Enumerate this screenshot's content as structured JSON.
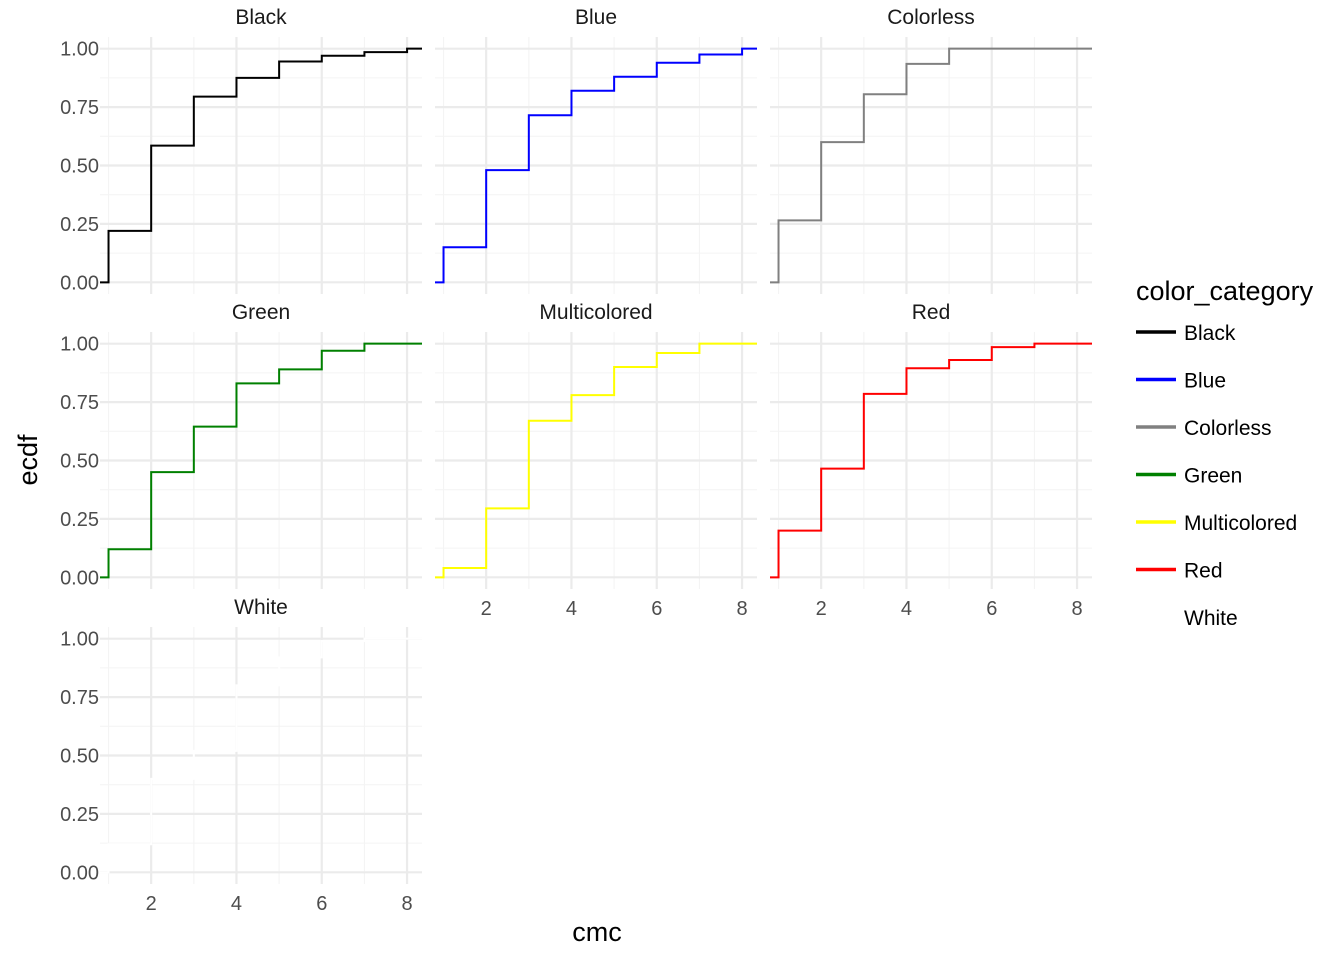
{
  "chart_data": {
    "type": "line",
    "geom": "step-ecdf",
    "xlabel": "cmc",
    "ylabel": "ecdf",
    "xlim": [
      0.8,
      8.35
    ],
    "ylim": [
      -0.05,
      1.05
    ],
    "x_ticks": [
      2,
      4,
      6,
      8
    ],
    "y_ticks": [
      0,
      0.25,
      0.5,
      0.75,
      1
    ],
    "y_tick_labels": [
      "0.00",
      "0.25",
      "0.50",
      "0.75",
      "1.00"
    ],
    "grid": true,
    "facet_columns": 3,
    "legend": {
      "title": "color_category",
      "position": "right",
      "entries": [
        {
          "label": "Black",
          "color": "#000000"
        },
        {
          "label": "Blue",
          "color": "#0000ff"
        },
        {
          "label": "Colorless",
          "color": "#808080"
        },
        {
          "label": "Green",
          "color": "#008000"
        },
        {
          "label": "Multicolored",
          "color": "#ffff00"
        },
        {
          "label": "Red",
          "color": "#ff0000"
        },
        {
          "label": "White",
          "color": "#ffffff"
        }
      ]
    },
    "series": [
      {
        "name": "Black",
        "color": "#000000",
        "x": [
          1,
          2,
          3,
          4,
          5,
          6,
          7,
          8
        ],
        "y": [
          0.22,
          0.585,
          0.795,
          0.875,
          0.945,
          0.97,
          0.985,
          1.0
        ]
      },
      {
        "name": "Blue",
        "color": "#0000ff",
        "x": [
          1,
          2,
          3,
          4,
          5,
          6,
          7,
          8
        ],
        "y": [
          0.15,
          0.48,
          0.715,
          0.82,
          0.88,
          0.94,
          0.975,
          1.0
        ]
      },
      {
        "name": "Colorless",
        "color": "#808080",
        "x": [
          1,
          2,
          3,
          4,
          5
        ],
        "y": [
          0.265,
          0.6,
          0.805,
          0.935,
          1.0
        ]
      },
      {
        "name": "Green",
        "color": "#008000",
        "x": [
          1,
          2,
          3,
          4,
          5,
          6,
          7
        ],
        "y": [
          0.12,
          0.45,
          0.645,
          0.83,
          0.89,
          0.97,
          1.0
        ]
      },
      {
        "name": "Multicolored",
        "color": "#ffff00",
        "x": [
          1,
          2,
          3,
          4,
          5,
          6,
          7
        ],
        "y": [
          0.04,
          0.295,
          0.67,
          0.78,
          0.9,
          0.96,
          1.0
        ]
      },
      {
        "name": "Red",
        "color": "#ff0000",
        "x": [
          1,
          2,
          3,
          4,
          5,
          6,
          7
        ],
        "y": [
          0.2,
          0.465,
          0.785,
          0.895,
          0.93,
          0.985,
          1.0
        ]
      },
      {
        "name": "White",
        "color": "#ffffff",
        "x": [
          1,
          2,
          3,
          4,
          5,
          6,
          7
        ],
        "y": [
          0.12,
          0.4,
          0.52,
          0.8,
          0.92,
          0.99,
          1.0
        ]
      }
    ]
  }
}
